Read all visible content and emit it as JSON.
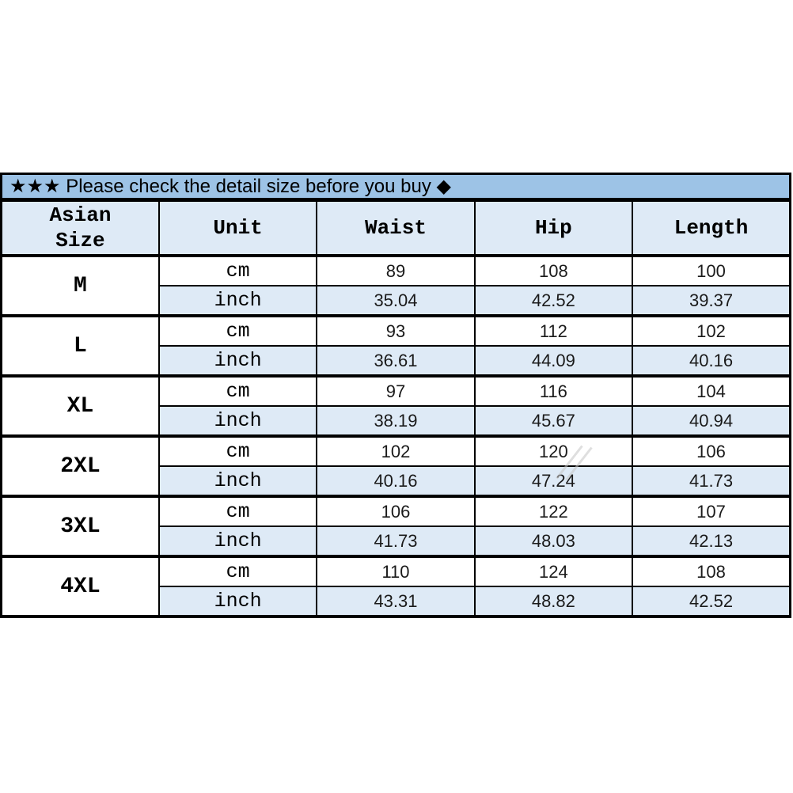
{
  "banner": {
    "text": "★★★ Please check the detail size before you buy ◆",
    "background": "#9DC3E6"
  },
  "table": {
    "columns": [
      "Asian\nSize",
      "Unit",
      "Waist",
      "Hip",
      "Length"
    ],
    "unit_labels": [
      "cm",
      "inch"
    ],
    "rows": [
      {
        "size": "M",
        "cm": [
          "89",
          "108",
          "100"
        ],
        "inch": [
          "35.04",
          "42.52",
          "39.37"
        ]
      },
      {
        "size": "L",
        "cm": [
          "93",
          "112",
          "102"
        ],
        "inch": [
          "36.61",
          "44.09",
          "40.16"
        ]
      },
      {
        "size": "XL",
        "cm": [
          "97",
          "116",
          "104"
        ],
        "inch": [
          "38.19",
          "45.67",
          "40.94"
        ]
      },
      {
        "size": "2XL",
        "cm": [
          "102",
          "120",
          "106"
        ],
        "inch": [
          "40.16",
          "47.24",
          "41.73"
        ]
      },
      {
        "size": "3XL",
        "cm": [
          "106",
          "122",
          "107"
        ],
        "inch": [
          "41.73",
          "48.03",
          "42.13"
        ]
      },
      {
        "size": "4XL",
        "cm": [
          "110",
          "124",
          "108"
        ],
        "inch": [
          "43.31",
          "48.82",
          "42.52"
        ]
      }
    ]
  },
  "colors": {
    "banner_bg": "#9DC3E6",
    "alt_row_bg": "#DEEAF6",
    "border": "#000000",
    "page_bg": "#FFFFFF"
  },
  "decor": {
    "watermark": "diagonal-slashes"
  }
}
